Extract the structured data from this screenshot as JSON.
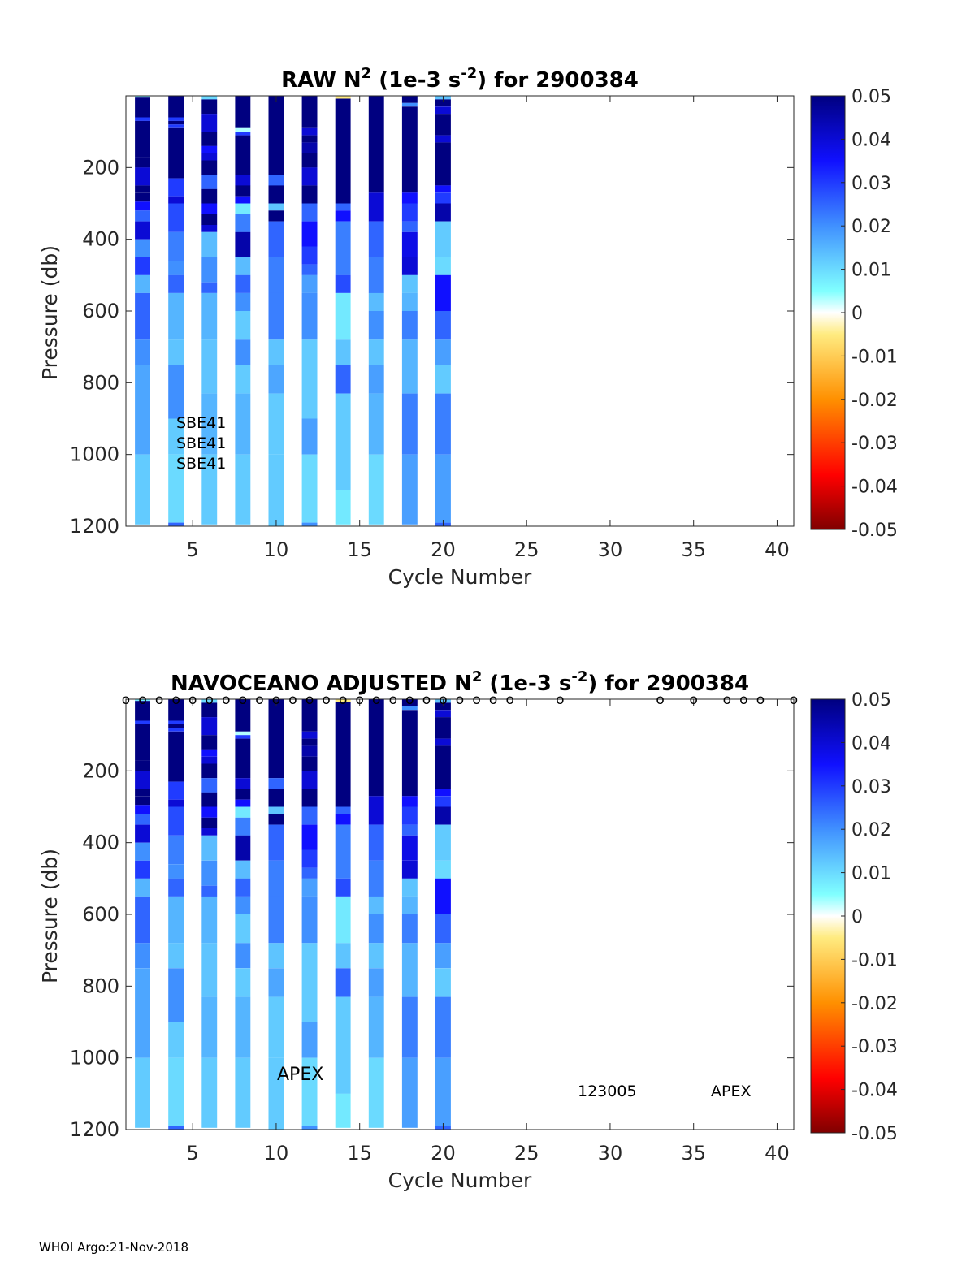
{
  "footer": "WHOI Argo:21-Nov-2018",
  "colorbar": {
    "ticks": [
      "0.05",
      "0.04",
      "0.03",
      "0.02",
      "0.01",
      "0",
      "-0.01",
      "-0.02",
      "-0.03",
      "-0.04",
      "-0.05"
    ],
    "range": [
      -0.05,
      0.05
    ]
  },
  "chart_data": [
    {
      "type": "heatmap",
      "title": {
        "main": "RAW N",
        "sup1": "2",
        "mid": " (1e-3 s",
        "sup2": "-2",
        "end": ") for 2900384"
      },
      "xlabel": "Cycle Number",
      "ylabel": "Pressure (db)",
      "xlim": [
        1,
        41
      ],
      "ylim": [
        1200,
        0
      ],
      "xticks": [
        "5",
        "10",
        "15",
        "20",
        "25",
        "30",
        "35",
        "40"
      ],
      "yticks": [
        "200",
        "400",
        "600",
        "800",
        "1000",
        "1200"
      ],
      "annotations": [
        "SBE41",
        "SBE41",
        "SBE41"
      ],
      "profiles": [
        {
          "cycle": 2,
          "max_p": 1195,
          "layers": [
            [
              0,
              5,
              0.008
            ],
            [
              5,
              60,
              0.05
            ],
            [
              60,
              70,
              0.03
            ],
            [
              70,
              170,
              0.05
            ],
            [
              170,
              200,
              0.05
            ],
            [
              200,
              250,
              0.04
            ],
            [
              250,
              270,
              0.05
            ],
            [
              270,
              295,
              0.05
            ],
            [
              295,
              320,
              0.035
            ],
            [
              320,
              350,
              0.025
            ],
            [
              350,
              400,
              0.04
            ],
            [
              400,
              450,
              0.02
            ],
            [
              450,
              500,
              0.03
            ],
            [
              500,
              550,
              0.015
            ],
            [
              550,
              680,
              0.025
            ],
            [
              680,
              750,
              0.02
            ],
            [
              750,
              1000,
              0.017
            ],
            [
              1000,
              1195,
              0.012
            ]
          ]
        },
        {
          "cycle": 4,
          "max_p": 1200,
          "layers": [
            [
              0,
              60,
              0.05
            ],
            [
              60,
              70,
              0.03
            ],
            [
              70,
              80,
              0.05
            ],
            [
              80,
              90,
              0.03
            ],
            [
              90,
              230,
              0.05
            ],
            [
              230,
              280,
              0.03
            ],
            [
              280,
              300,
              0.04
            ],
            [
              300,
              380,
              0.028
            ],
            [
              380,
              460,
              0.022
            ],
            [
              460,
              500,
              0.02
            ],
            [
              500,
              550,
              0.025
            ],
            [
              550,
              680,
              0.015
            ],
            [
              680,
              750,
              0.013
            ],
            [
              750,
              900,
              0.02
            ],
            [
              900,
              1000,
              0.012
            ],
            [
              1000,
              1190,
              0.01
            ],
            [
              1190,
              1200,
              0.025
            ]
          ]
        },
        {
          "cycle": 6,
          "max_p": 1195,
          "layers": [
            [
              0,
              10,
              0.01
            ],
            [
              10,
              50,
              0.05
            ],
            [
              50,
              100,
              0.04
            ],
            [
              100,
              140,
              0.05
            ],
            [
              140,
              160,
              0.035
            ],
            [
              160,
              180,
              0.04
            ],
            [
              180,
              220,
              0.05
            ],
            [
              220,
              260,
              0.025
            ],
            [
              260,
              300,
              0.05
            ],
            [
              300,
              330,
              0.035
            ],
            [
              330,
              360,
              0.05
            ],
            [
              360,
              380,
              0.04
            ],
            [
              380,
              450,
              0.014
            ],
            [
              450,
              520,
              0.02
            ],
            [
              520,
              550,
              0.025
            ],
            [
              550,
              680,
              0.015
            ],
            [
              680,
              830,
              0.013
            ],
            [
              830,
              1000,
              0.015
            ],
            [
              1000,
              1195,
              0.012
            ]
          ]
        },
        {
          "cycle": 8,
          "max_p": 1195,
          "layers": [
            [
              0,
              90,
              0.05
            ],
            [
              90,
              100,
              0.003
            ],
            [
              100,
              110,
              0.03
            ],
            [
              110,
              220,
              0.05
            ],
            [
              220,
              250,
              0.04
            ],
            [
              250,
              280,
              0.05
            ],
            [
              280,
              300,
              0.035
            ],
            [
              300,
              330,
              0.008
            ],
            [
              330,
              380,
              0.022
            ],
            [
              380,
              450,
              0.045
            ],
            [
              450,
              500,
              0.014
            ],
            [
              500,
              550,
              0.025
            ],
            [
              550,
              600,
              0.02
            ],
            [
              600,
              680,
              0.012
            ],
            [
              680,
              750,
              0.02
            ],
            [
              750,
              830,
              0.012
            ],
            [
              830,
              1000,
              0.015
            ],
            [
              1000,
              1195,
              0.012
            ]
          ]
        },
        {
          "cycle": 10,
          "max_p": 1200,
          "layers": [
            [
              0,
              220,
              0.05
            ],
            [
              220,
              250,
              0.025
            ],
            [
              250,
              300,
              0.05
            ],
            [
              300,
              320,
              0.013
            ],
            [
              320,
              350,
              0.05
            ],
            [
              350,
              450,
              0.025
            ],
            [
              450,
              550,
              0.022
            ],
            [
              550,
              680,
              0.022
            ],
            [
              680,
              750,
              0.013
            ],
            [
              750,
              830,
              0.017
            ],
            [
              830,
              1000,
              0.012
            ],
            [
              1000,
              1200,
              0.012
            ]
          ]
        },
        {
          "cycle": 12,
          "max_p": 1200,
          "layers": [
            [
              0,
              90,
              0.05
            ],
            [
              90,
              110,
              0.04
            ],
            [
              110,
              130,
              0.05
            ],
            [
              130,
              160,
              0.045
            ],
            [
              160,
              200,
              0.05
            ],
            [
              200,
              250,
              0.04
            ],
            [
              250,
              300,
              0.05
            ],
            [
              300,
              350,
              0.025
            ],
            [
              350,
              420,
              0.035
            ],
            [
              420,
              470,
              0.03
            ],
            [
              470,
              500,
              0.025
            ],
            [
              500,
              550,
              0.018
            ],
            [
              550,
              680,
              0.02
            ],
            [
              680,
              900,
              0.012
            ],
            [
              900,
              1000,
              0.018
            ],
            [
              1000,
              1190,
              0.01
            ],
            [
              1190,
              1200,
              0.02
            ]
          ]
        },
        {
          "cycle": 14,
          "max_p": 1195,
          "layers": [
            [
              0,
              8,
              -0.005
            ],
            [
              8,
              300,
              0.05
            ],
            [
              300,
              320,
              0.025
            ],
            [
              320,
              350,
              0.035
            ],
            [
              350,
              500,
              0.022
            ],
            [
              500,
              550,
              0.028
            ],
            [
              550,
              680,
              0.008
            ],
            [
              680,
              750,
              0.013
            ],
            [
              750,
              830,
              0.025
            ],
            [
              830,
              1100,
              0.012
            ],
            [
              1100,
              1195,
              0.008
            ]
          ]
        },
        {
          "cycle": 16,
          "max_p": 1195,
          "layers": [
            [
              0,
              270,
              0.05
            ],
            [
              270,
              350,
              0.04
            ],
            [
              350,
              450,
              0.025
            ],
            [
              450,
              550,
              0.022
            ],
            [
              550,
              600,
              0.014
            ],
            [
              600,
              680,
              0.02
            ],
            [
              680,
              750,
              0.013
            ],
            [
              750,
              830,
              0.018
            ],
            [
              830,
              1000,
              0.015
            ],
            [
              1000,
              1195,
              0.01
            ]
          ]
        },
        {
          "cycle": 18,
          "max_p": 1195,
          "layers": [
            [
              0,
              20,
              0.05
            ],
            [
              20,
              30,
              0.02
            ],
            [
              30,
              270,
              0.05
            ],
            [
              270,
              300,
              0.035
            ],
            [
              300,
              350,
              0.03
            ],
            [
              350,
              380,
              0.025
            ],
            [
              380,
              450,
              0.038
            ],
            [
              450,
              500,
              0.04
            ],
            [
              500,
              550,
              0.013
            ],
            [
              550,
              600,
              0.015
            ],
            [
              600,
              680,
              0.022
            ],
            [
              680,
              830,
              0.015
            ],
            [
              830,
              1000,
              0.022
            ],
            [
              1000,
              1195,
              0.018
            ]
          ]
        },
        {
          "cycle": 20,
          "max_p": 1200,
          "layers": [
            [
              0,
              10,
              0.013
            ],
            [
              10,
              30,
              0.05
            ],
            [
              30,
              50,
              0.04
            ],
            [
              50,
              110,
              0.05
            ],
            [
              110,
              130,
              0.04
            ],
            [
              130,
              250,
              0.05
            ],
            [
              250,
              270,
              0.035
            ],
            [
              270,
              300,
              0.03
            ],
            [
              300,
              350,
              0.045
            ],
            [
              350,
              450,
              0.012
            ],
            [
              450,
              500,
              0.01
            ],
            [
              500,
              600,
              0.035
            ],
            [
              600,
              680,
              0.025
            ],
            [
              680,
              750,
              0.018
            ],
            [
              750,
              830,
              0.012
            ],
            [
              830,
              1000,
              0.022
            ],
            [
              1000,
              1190,
              0.018
            ],
            [
              1190,
              1200,
              0.025
            ]
          ]
        }
      ]
    },
    {
      "type": "heatmap",
      "title": {
        "main": "NAVOCEANO  ADJUSTED N",
        "sup1": "2",
        "mid": " (1e-3 s",
        "sup2": "-2",
        "end": ") for 2900384"
      },
      "xlabel": "Cycle Number",
      "ylabel": "Pressure (db)",
      "xlim": [
        1,
        41
      ],
      "ylim": [
        1200,
        0
      ],
      "xticks": [
        "5",
        "10",
        "15",
        "20",
        "25",
        "30",
        "35",
        "40"
      ],
      "yticks": [
        "200",
        "400",
        "600",
        "800",
        "1000",
        "1200"
      ],
      "annotations": [
        "APEX",
        "123005",
        "APEX"
      ],
      "qc_markers_cycles": [
        1,
        2,
        3,
        4,
        5,
        6,
        7,
        8,
        9,
        10,
        11,
        12,
        13,
        14,
        15,
        16,
        17,
        18,
        19,
        20,
        21,
        22,
        23,
        24,
        27,
        33,
        35,
        37,
        38,
        39,
        41
      ],
      "qc_marker_symbol": "o",
      "profiles_same_as_raw": true
    }
  ]
}
